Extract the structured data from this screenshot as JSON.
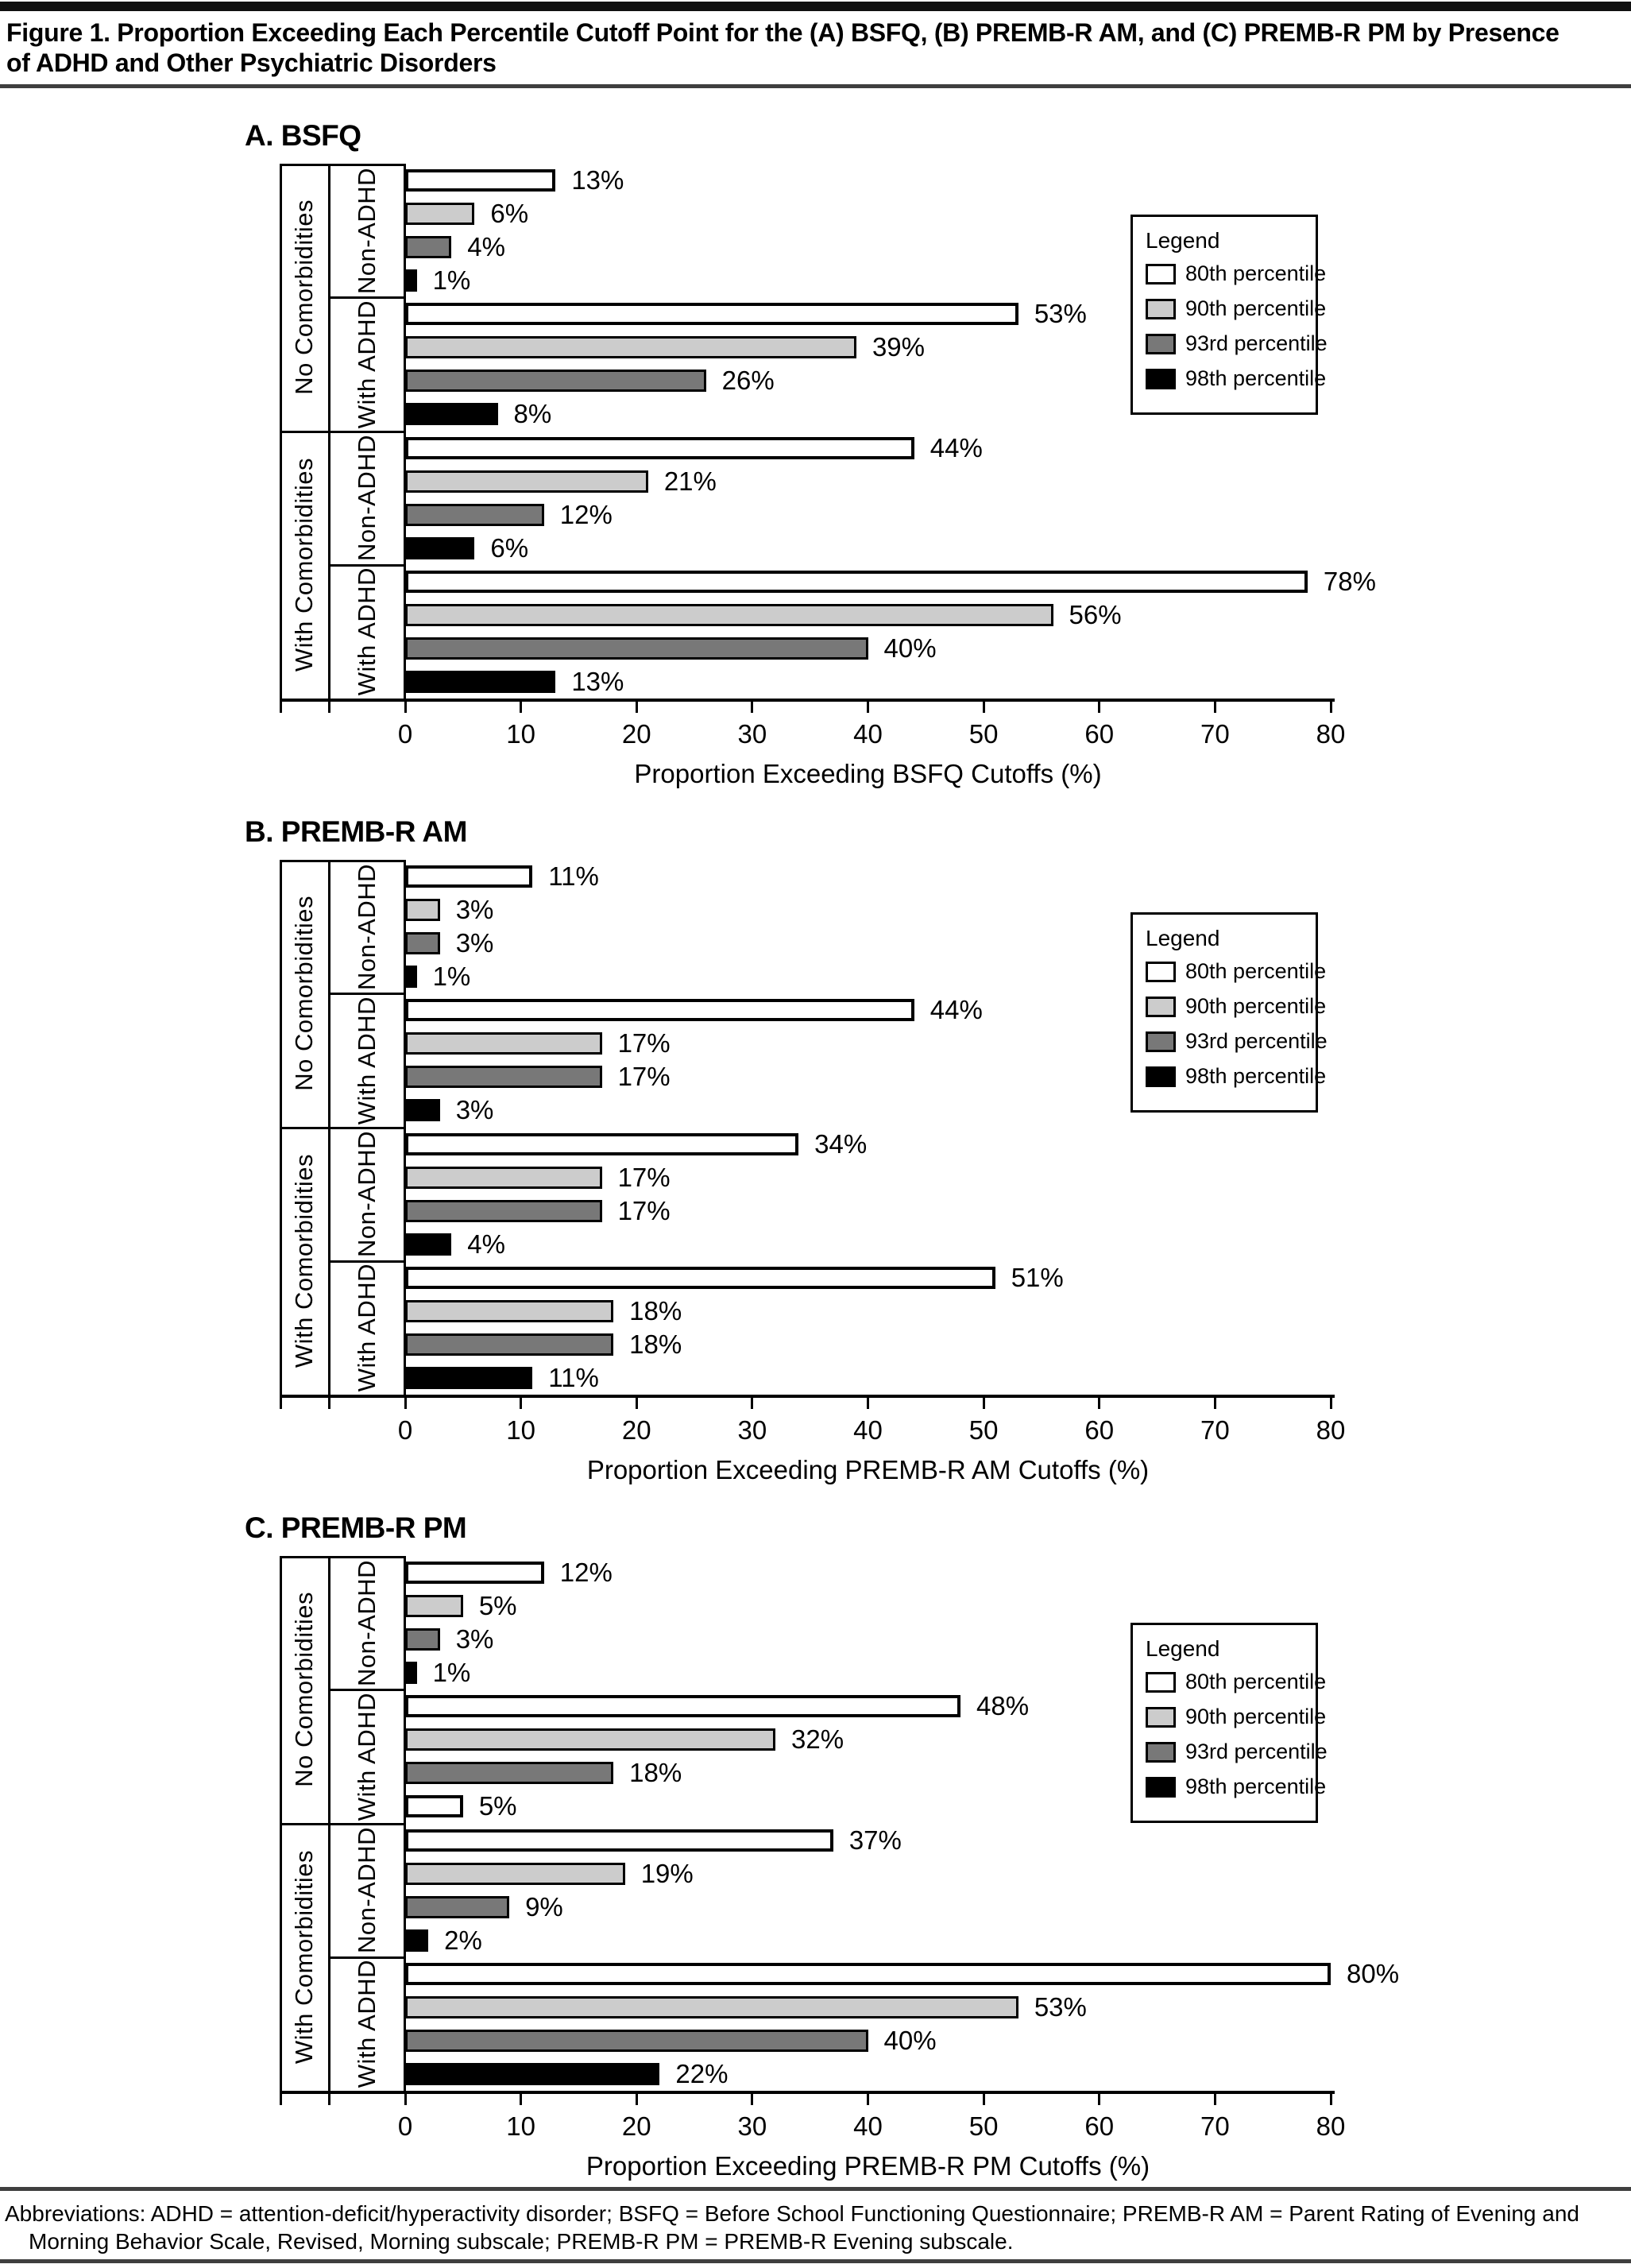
{
  "figure": {
    "title_line1": "Figure 1. Proportion Exceeding Each Percentile Cutoff Point for the (A) BSFQ, (B) PREMB-R AM, and (C) PREMB-R PM by Presence",
    "title_line2": "of ADHD and Other Psychiatric Disorders"
  },
  "axis_table": {
    "outer": [
      "No Comorbidities",
      "With Comorbidities"
    ],
    "inner": [
      "Non-ADHD",
      "With ADHD",
      "Non-ADHD",
      "With ADHD"
    ]
  },
  "legend": {
    "title": "Legend",
    "items": [
      {
        "label": "80th percentile",
        "style": "p80"
      },
      {
        "label": "90th percentile",
        "style": "p90"
      },
      {
        "label": "93rd percentile",
        "style": "p93"
      },
      {
        "label": "98th percentile",
        "style": "p98"
      }
    ]
  },
  "styles": {
    "p80": "#ffffff",
    "p90": "#cccccc",
    "p93": "#787878",
    "p98": "#000000"
  },
  "value_suffix": "%",
  "chart_data": [
    {
      "type": "bar",
      "orientation": "horizontal",
      "title": "A. BSFQ",
      "xlabel": "Proportion Exceeding BSFQ Cutoffs (%)",
      "xlim": [
        0,
        80
      ],
      "xticks": [
        0,
        10,
        20,
        30,
        40,
        50,
        60,
        70,
        80
      ],
      "grid": false,
      "legend_position": "inside-upper-right",
      "categories": [
        "No Comorbidities / Non-ADHD",
        "No Comorbidities / With ADHD",
        "With Comorbidities / Non-ADHD",
        "With Comorbidities / With ADHD"
      ],
      "series": [
        {
          "name": "80th percentile",
          "values": [
            13,
            53,
            44,
            78
          ]
        },
        {
          "name": "90th percentile",
          "values": [
            6,
            39,
            21,
            56
          ]
        },
        {
          "name": "93rd percentile",
          "values": [
            4,
            26,
            12,
            40
          ]
        },
        {
          "name": "98th percentile",
          "values": [
            1,
            8,
            6,
            13
          ]
        }
      ]
    },
    {
      "type": "bar",
      "orientation": "horizontal",
      "title": "B. PREMB-R AM",
      "xlabel": "Proportion Exceeding PREMB-R AM Cutoffs (%)",
      "xlim": [
        0,
        80
      ],
      "xticks": [
        0,
        10,
        20,
        30,
        40,
        50,
        60,
        70,
        80
      ],
      "grid": false,
      "legend_position": "inside-upper-right",
      "categories": [
        "No Comorbidities / Non-ADHD",
        "No Comorbidities / With ADHD",
        "With Comorbidities / Non-ADHD",
        "With Comorbidities / With ADHD"
      ],
      "series": [
        {
          "name": "80th percentile",
          "values": [
            11,
            44,
            34,
            51
          ]
        },
        {
          "name": "90th percentile",
          "values": [
            3,
            17,
            17,
            18
          ]
        },
        {
          "name": "93rd percentile",
          "values": [
            3,
            17,
            17,
            18
          ]
        },
        {
          "name": "98th percentile",
          "values": [
            1,
            3,
            4,
            11
          ]
        }
      ]
    },
    {
      "type": "bar",
      "orientation": "horizontal",
      "title": "C. PREMB-R PM",
      "xlabel": "Proportion Exceeding PREMB-R PM Cutoffs (%)",
      "xlim": [
        0,
        80
      ],
      "xticks": [
        0,
        10,
        20,
        30,
        40,
        50,
        60,
        70,
        80
      ],
      "grid": false,
      "legend_position": "inside-upper-right",
      "categories": [
        "No Comorbidities / Non-ADHD",
        "No Comorbidities / With ADHD",
        "With Comorbidities / Non-ADHD",
        "With Comorbidities / With ADHD"
      ],
      "series": [
        {
          "name": "80th percentile",
          "values": [
            12,
            48,
            37,
            80
          ]
        },
        {
          "name": "90th percentile",
          "values": [
            5,
            32,
            19,
            53
          ]
        },
        {
          "name": "93rd percentile",
          "values": [
            3,
            18,
            9,
            40
          ]
        },
        {
          "name": "98th percentile",
          "values": [
            1,
            5,
            2,
            22
          ]
        }
      ]
    }
  ],
  "fill_overrides": [
    {
      "chart_index": 2,
      "category_index": 1,
      "series_index": 3,
      "style": "p80"
    }
  ],
  "footer": {
    "abbreviations_line1": "Abbreviations: ADHD = attention-deficit/hyperactivity disorder; BSFQ = Before School Functioning Questionnaire; PREMB-R AM = Parent Rating of Evening and",
    "abbreviations_line2": "Morning Behavior Scale, Revised, Morning subscale; PREMB-R PM = PREMB-R Evening subscale."
  }
}
